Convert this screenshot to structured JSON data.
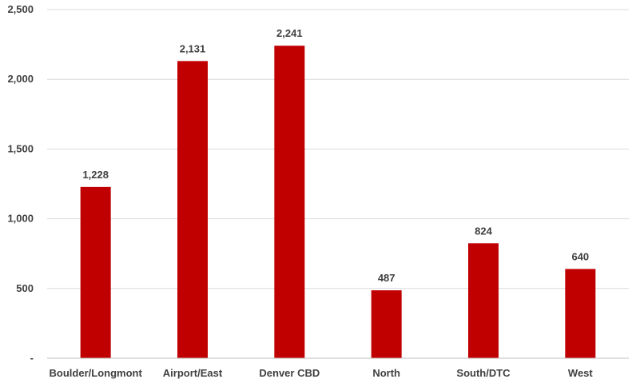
{
  "chart_data": {
    "type": "bar",
    "categories": [
      "Boulder/Longmont",
      "Airport/East",
      "Denver CBD",
      "North",
      "South/DTC",
      "West"
    ],
    "values": [
      1228,
      2131,
      2241,
      487,
      824,
      640
    ],
    "data_labels": [
      "1,228",
      "2,131",
      "2,241",
      "487",
      "824",
      "640"
    ],
    "ylim": [
      0,
      2500
    ],
    "y_ticks": [
      {
        "value": 0,
        "label": "-"
      },
      {
        "value": 500,
        "label": "500"
      },
      {
        "value": 1000,
        "label": "1,000"
      },
      {
        "value": 1500,
        "label": "1,500"
      },
      {
        "value": 2000,
        "label": "2,000"
      },
      {
        "value": 2500,
        "label": "2,500"
      }
    ],
    "grid": true,
    "legend": "none",
    "bar_color": "#c00000"
  }
}
